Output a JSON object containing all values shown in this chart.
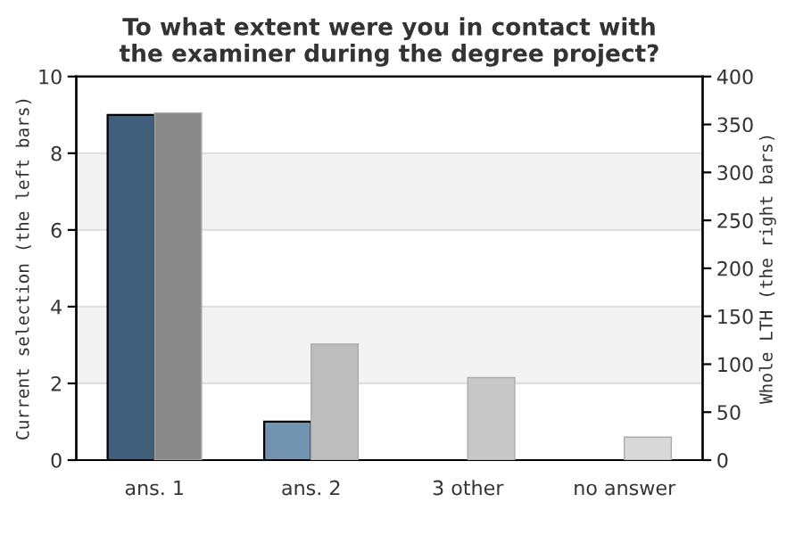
{
  "chart_data": {
    "type": "bar",
    "title": "To what extent were you in contact with\nthe examiner during the degree project?",
    "ylabel": "Current selection (the left bars)",
    "y2label": "Whole LTH (the right bars)",
    "categories": [
      "ans. 1",
      "ans. 2",
      "3 other",
      "no answer"
    ],
    "series": [
      {
        "colors": [
          "#3f5f7a",
          "#7294b0",
          "#7294b0",
          "#7294b0"
        ],
        "values": [
          9,
          1,
          0,
          0
        ]
      },
      {
        "axis": "y2",
        "colors": [
          "#8a8a8a",
          "#bdbdbd",
          "#c8c8c8",
          "#d8d8d8"
        ],
        "values": [
          362,
          121,
          86,
          24
        ]
      }
    ],
    "ylim": [
      0,
      10
    ],
    "yticks": [
      0,
      2,
      4,
      6,
      8,
      10
    ],
    "y2lim": [
      0,
      400
    ],
    "y2ticks": [
      0,
      50,
      100,
      150,
      200,
      250,
      300,
      350,
      400
    ],
    "bands": [
      {
        "axis": "y",
        "from": 2,
        "to": 4,
        "color": "#f3f3f3"
      },
      {
        "axis": "y",
        "from": 6,
        "to": 8,
        "color": "#f3f3f3"
      }
    ],
    "grid": "y",
    "legend": false
  }
}
